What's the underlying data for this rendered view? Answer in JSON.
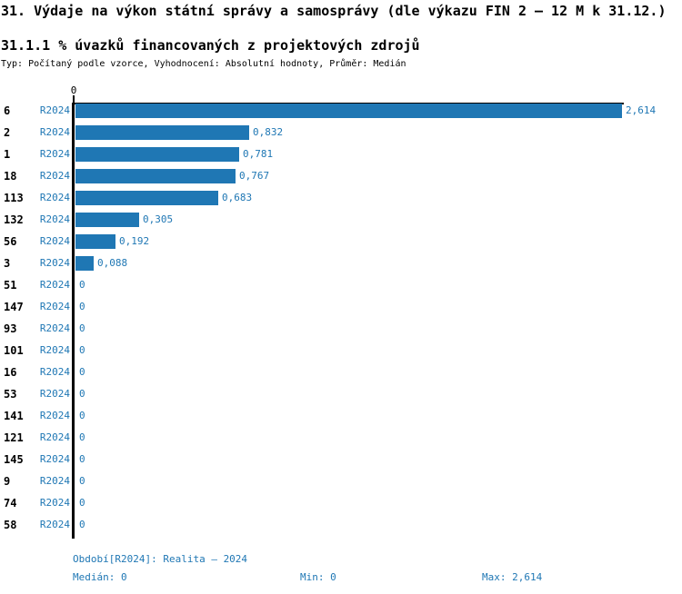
{
  "header": {
    "title": "31. Výdaje na výkon státní správy a samosprávy (dle výkazu FIN 2 – 12 M k 31.12.)",
    "subtitle": "31.1.1 % úvazků financovaných z projektových zdrojů",
    "meta": "Typ: Počítaný podle vzorce, Vyhodnocení: Absolutní hodnoty, Průměr: Medián"
  },
  "chart_data": {
    "type": "bar",
    "orientation": "horizontal",
    "title": "31.1.1 % úvazků financovaných z projektových zdrojů",
    "categories": [
      "6",
      "2",
      "1",
      "18",
      "113",
      "132",
      "56",
      "3",
      "51",
      "147",
      "93",
      "101",
      "16",
      "53",
      "141",
      "121",
      "145",
      "9",
      "74",
      "58"
    ],
    "series": [
      {
        "name": "R2024",
        "values": [
          2.614,
          0.832,
          0.781,
          0.767,
          0.683,
          0.305,
          0.192,
          0.088,
          0,
          0,
          0,
          0,
          0,
          0,
          0,
          0,
          0,
          0,
          0,
          0
        ]
      }
    ],
    "value_labels": [
      "2,614",
      "0,832",
      "0,781",
      "0,767",
      "0,683",
      "0,305",
      "0,192",
      "0,088",
      "0",
      "0",
      "0",
      "0",
      "0",
      "0",
      "0",
      "0",
      "0",
      "0",
      "0",
      "0"
    ],
    "xlim": [
      0,
      2.614
    ],
    "axis_tick_label": "0",
    "grid": false,
    "legend": "none",
    "bar_color": "#1F77B4"
  },
  "footer": {
    "period": "Období[R2024]: Realita – 2024",
    "median": "Medián: 0",
    "min": "Min: 0",
    "max": "Max: 2,614"
  }
}
